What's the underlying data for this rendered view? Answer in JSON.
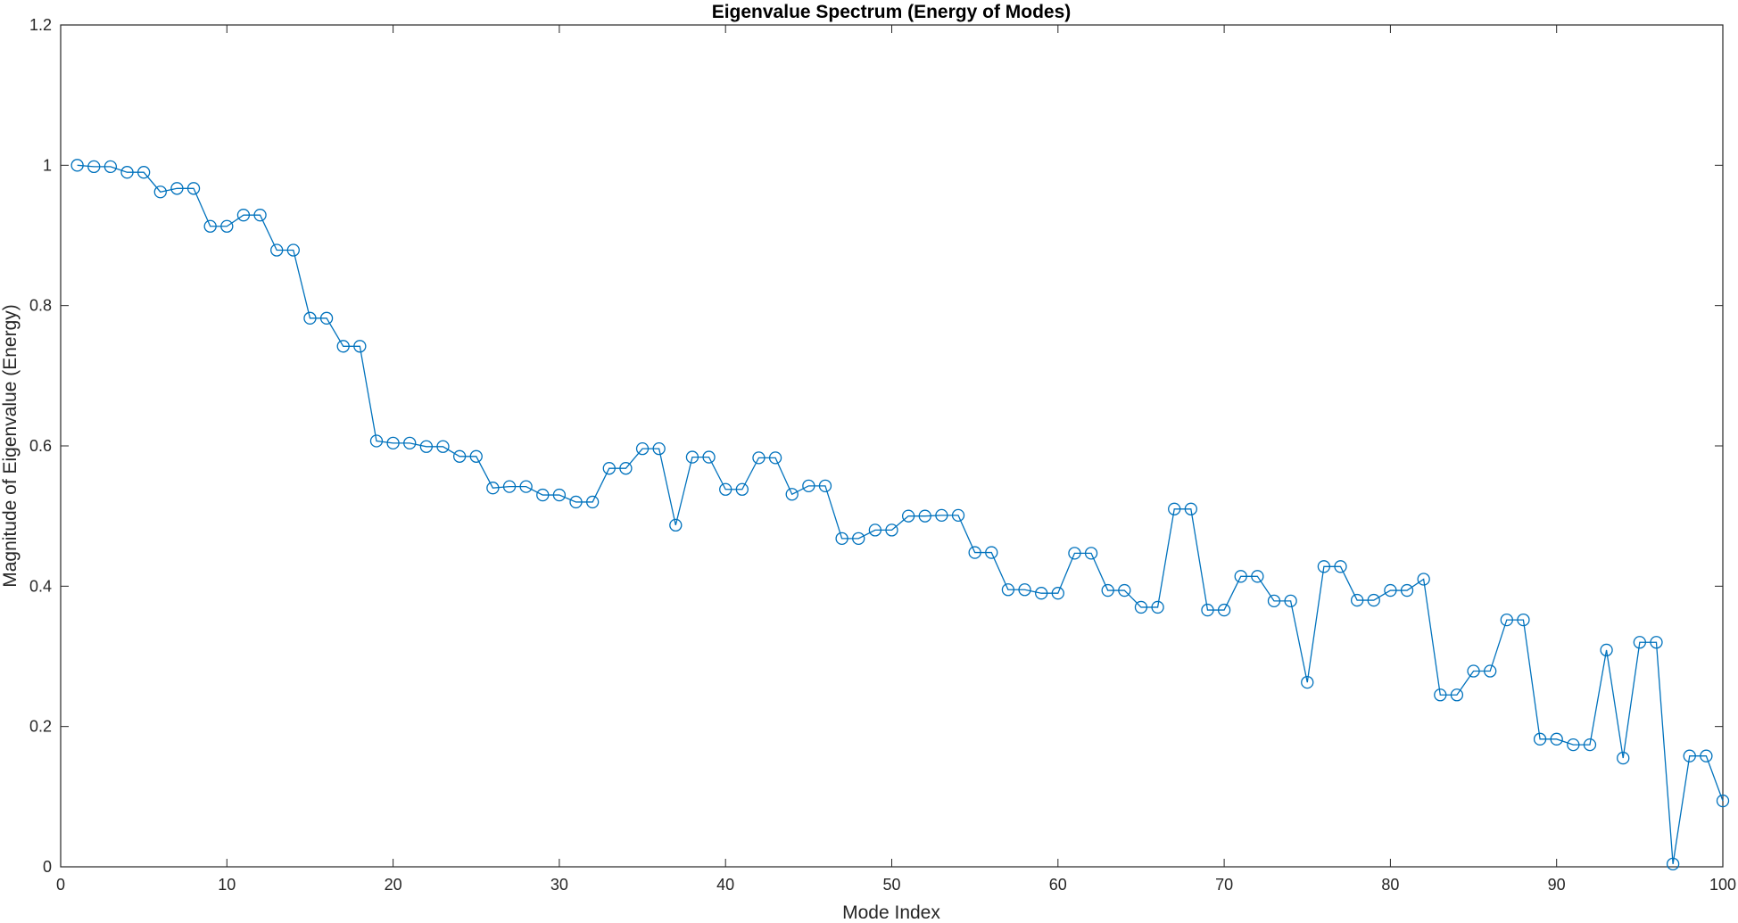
{
  "chart_data": {
    "type": "line",
    "title": "Eigenvalue Spectrum (Energy of Modes)",
    "xlabel": "Mode Index",
    "ylabel": "Magnitude of Eigenvalue (Energy)",
    "xlim": [
      0,
      100
    ],
    "ylim": [
      0,
      1.2
    ],
    "xticks": [
      0,
      10,
      20,
      30,
      40,
      50,
      60,
      70,
      80,
      90,
      100
    ],
    "yticks": [
      0,
      0.2,
      0.4,
      0.6,
      0.8,
      1,
      1.2
    ],
    "xtick_labels": [
      "0",
      "10",
      "20",
      "30",
      "40",
      "50",
      "60",
      "70",
      "80",
      "90",
      "100"
    ],
    "ytick_labels": [
      "0",
      "0.2",
      "0.4",
      "0.6",
      "0.8",
      "1",
      "1.2"
    ],
    "grid": false,
    "marker": "circle",
    "color": "#0072BD",
    "series": [
      {
        "x": [
          1,
          2,
          3,
          4,
          5,
          6,
          7,
          8,
          9,
          10,
          11,
          12,
          13,
          14,
          15,
          16,
          17,
          18,
          19,
          20,
          21,
          22,
          23,
          24,
          25,
          26,
          27,
          28,
          29,
          30,
          31,
          32,
          33,
          34,
          35,
          36,
          37,
          38,
          39,
          40,
          41,
          42,
          43,
          44,
          45,
          46,
          47,
          48,
          49,
          50,
          51,
          52,
          53,
          54,
          55,
          56,
          57,
          58,
          59,
          60,
          61,
          62,
          63,
          64,
          65,
          66,
          67,
          68,
          69,
          70,
          71,
          72,
          73,
          74,
          75,
          76,
          77,
          78,
          79,
          80,
          81,
          82,
          83,
          84,
          85,
          86,
          87,
          88,
          89,
          90,
          91,
          92,
          93,
          94,
          95,
          96,
          97,
          98,
          99,
          100
        ],
        "values": [
          1.0,
          0.998,
          0.998,
          0.99,
          0.99,
          0.962,
          0.967,
          0.967,
          0.913,
          0.913,
          0.929,
          0.929,
          0.879,
          0.879,
          0.782,
          0.782,
          0.742,
          0.742,
          0.607,
          0.604,
          0.604,
          0.599,
          0.599,
          0.585,
          0.585,
          0.54,
          0.542,
          0.542,
          0.53,
          0.53,
          0.52,
          0.52,
          0.568,
          0.568,
          0.596,
          0.596,
          0.487,
          0.584,
          0.584,
          0.538,
          0.538,
          0.583,
          0.583,
          0.531,
          0.543,
          0.543,
          0.468,
          0.468,
          0.48,
          0.48,
          0.5,
          0.5,
          0.501,
          0.501,
          0.448,
          0.448,
          0.395,
          0.395,
          0.39,
          0.39,
          0.447,
          0.447,
          0.394,
          0.394,
          0.37,
          0.37,
          0.51,
          0.51,
          0.366,
          0.366,
          0.414,
          0.414,
          0.379,
          0.379,
          0.263,
          0.428,
          0.428,
          0.38,
          0.38,
          0.394,
          0.394,
          0.41,
          0.245,
          0.245,
          0.279,
          0.279,
          0.352,
          0.352,
          0.182,
          0.182,
          0.174,
          0.174,
          0.309,
          0.155,
          0.32,
          0.32,
          0.004,
          0.158,
          0.158,
          0.094
        ]
      }
    ]
  }
}
